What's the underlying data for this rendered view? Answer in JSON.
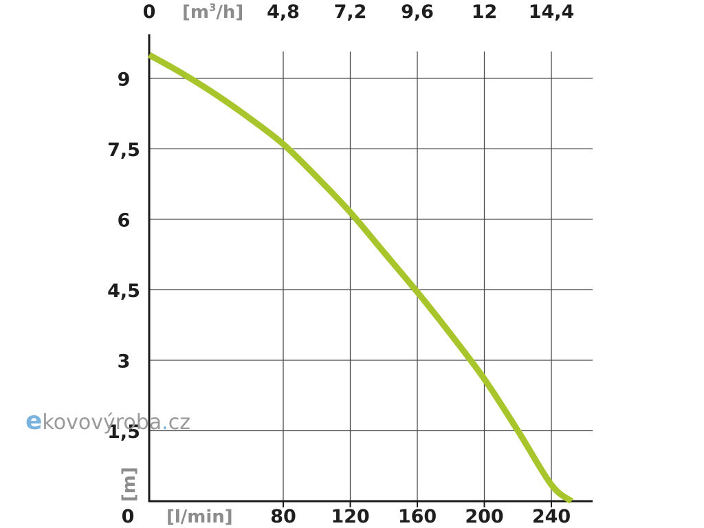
{
  "chart_data": {
    "type": "line",
    "x_bottom_unit": "[l/min]",
    "x_top_unit_base": "[m",
    "x_top_unit_sup": "3",
    "x_top_unit_end": "/h]",
    "y_unit": "[m]",
    "x_origin_label": "0",
    "y_origin_label": "0",
    "x_ticks_bottom": [
      "80",
      "120",
      "160",
      "200",
      "240"
    ],
    "x_ticks_bottom_values": [
      80,
      120,
      160,
      200,
      240
    ],
    "x_ticks_top": [
      "4,8",
      "7,2",
      "9,6",
      "12",
      "14,4"
    ],
    "x_top_origin_label": "0",
    "y_ticks": [
      "1,5",
      "3",
      "4,5",
      "6",
      "7,5",
      "9"
    ],
    "y_ticks_values": [
      1.5,
      3,
      4.5,
      6,
      7.5,
      9
    ],
    "xlim": [
      0,
      265
    ],
    "ylim": [
      0,
      9.5
    ],
    "grid": true,
    "series": [
      {
        "color": "#a8c52b",
        "x": [
          0,
          20,
          40,
          60,
          80,
          100,
          120,
          140,
          160,
          180,
          200,
          220,
          240,
          252
        ],
        "y": [
          9.5,
          9.1,
          8.65,
          8.15,
          7.6,
          6.9,
          6.15,
          5.3,
          4.45,
          3.55,
          2.6,
          1.5,
          0.35,
          0
        ]
      }
    ]
  },
  "watermark": {
    "letter_e": "e",
    "main": "kovovýroba",
    "dot": ".",
    "tld": "cz"
  }
}
